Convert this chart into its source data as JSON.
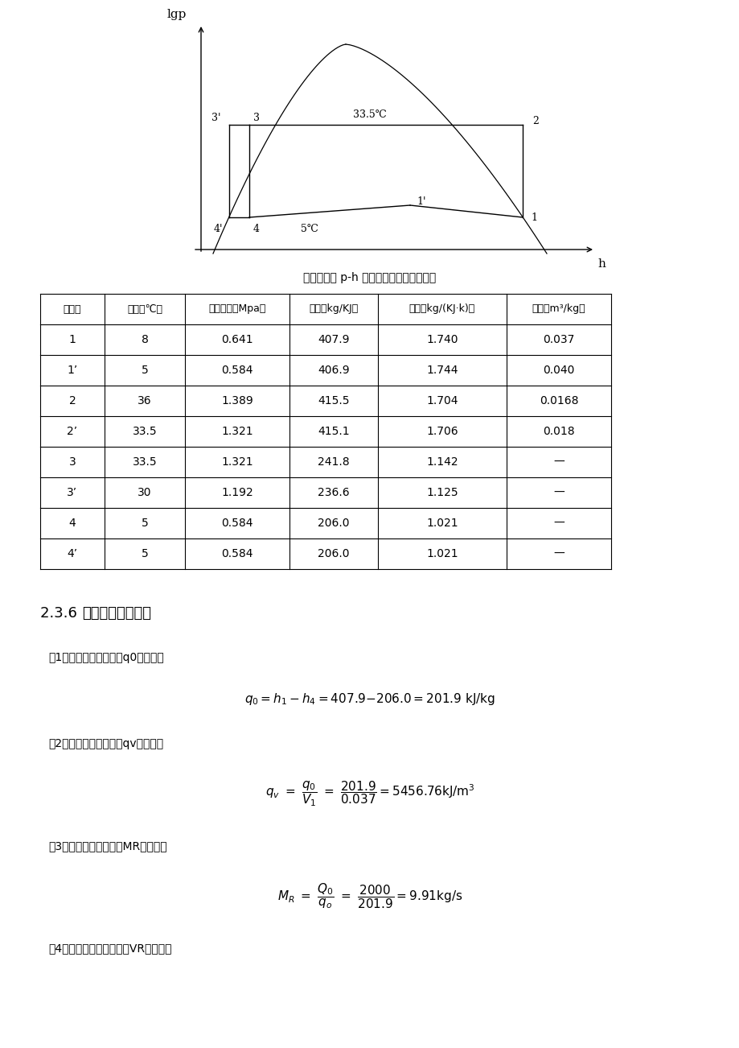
{
  "bg_color": "#ffffff",
  "page_width": 9.2,
  "page_height": 13.02,
  "note_above_table": "根据绘制的 p-h 图查表求得各状态参数：",
  "table_headers": [
    "状态点",
    "温度（℃）",
    "绝对压力（Mpa）",
    "比熸（kg/KJ）",
    "比熹（kg/(KJ·k)）",
    "比容（m³/kg）"
  ],
  "table_rows": [
    [
      "1",
      "8",
      "0.641",
      "407.9",
      "1.740",
      "0.037"
    ],
    [
      "1’",
      "5",
      "0.584",
      "406.9",
      "1.744",
      "0.040"
    ],
    [
      "2",
      "36",
      "1.389",
      "415.5",
      "1.704",
      "0.0168"
    ],
    [
      "2’",
      "33.5",
      "1.321",
      "415.1",
      "1.706",
      "0.018"
    ],
    [
      "3",
      "33.5",
      "1.321",
      "241.8",
      "1.142",
      "—"
    ],
    [
      "3’",
      "30",
      "1.192",
      "236.6",
      "1.125",
      "—"
    ],
    [
      "4",
      "5",
      "0.584",
      "206.0",
      "1.021",
      "—"
    ],
    [
      "4’",
      "5",
      "0.584",
      "206.0",
      "1.021",
      "—"
    ]
  ],
  "section_title_prefix": "2.3.6 ",
  "section_title_bold": "制冷系统热力计算",
  "formula_labels": [
    "（1）单位质量制冷量（q0）的计算",
    "（2）单位容积制冷量（qv）的计算",
    "（3）制冷剂质量流量（MR）的计算",
    "（4）制冷剂的体积流量（VR）的计算"
  ]
}
